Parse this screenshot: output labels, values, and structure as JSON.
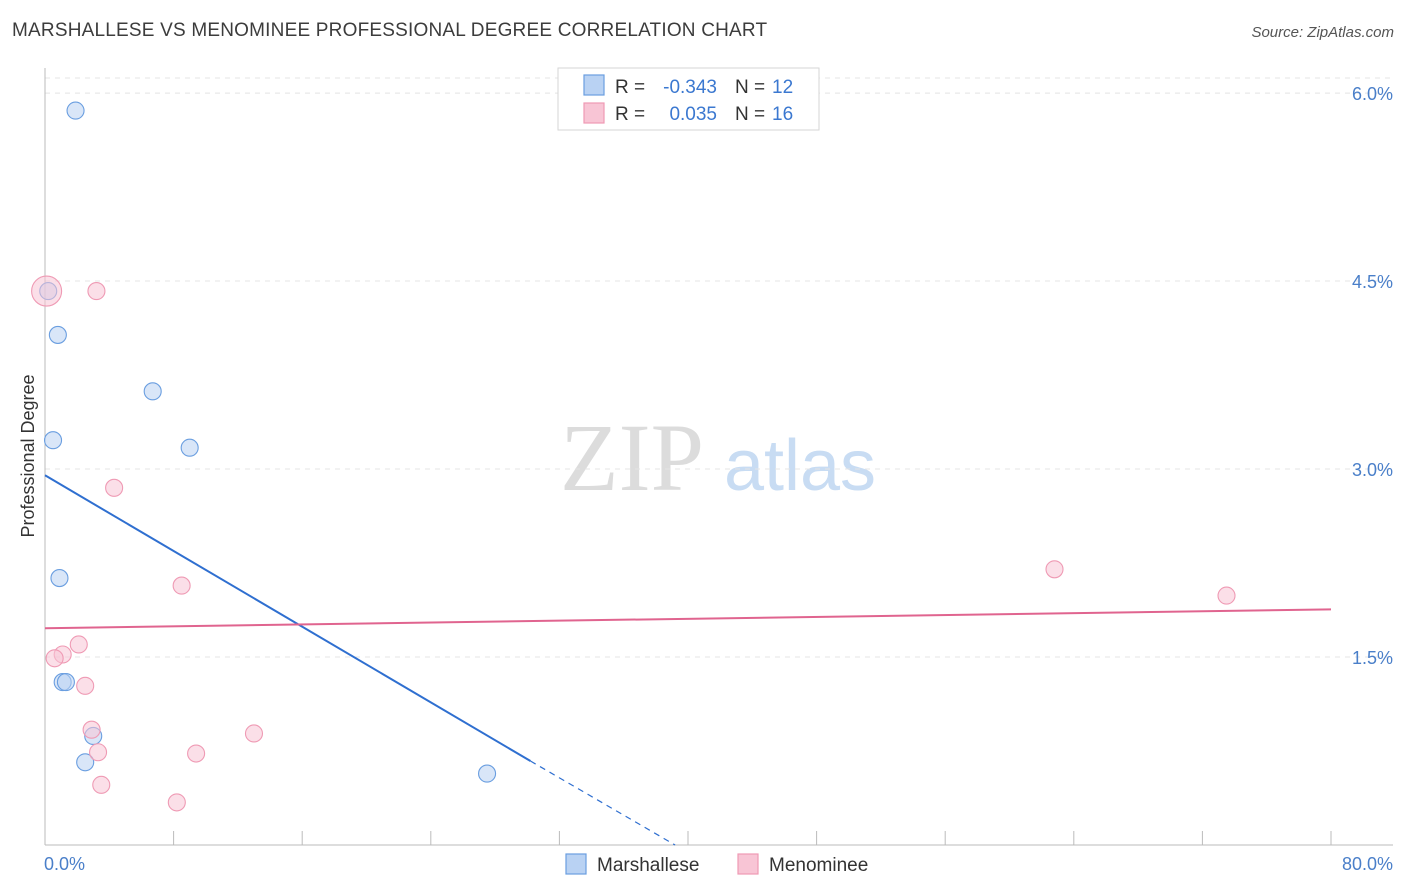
{
  "title": "MARSHALLESE VS MENOMINEE PROFESSIONAL DEGREE CORRELATION CHART",
  "source": "Source: ZipAtlas.com",
  "watermark": {
    "zip": "ZIP",
    "atlas": "atlas"
  },
  "legend_top": [
    {
      "r_label": "R =",
      "r_value": "-0.343",
      "n_label": "N =",
      "n_value": "12"
    },
    {
      "r_label": "R =",
      "r_value": "0.035",
      "n_label": "N =",
      "n_value": "16"
    }
  ],
  "legend_bottom": [
    "Marshallese",
    "Menominee"
  ],
  "chart_data": {
    "type": "scatter",
    "title": "MARSHALLESE VS MENOMINEE PROFESSIONAL DEGREE CORRELATION CHART",
    "xlabel": "",
    "ylabel": "Professional Degree",
    "xlim": [
      0,
      80
    ],
    "ylim": [
      0,
      6.2
    ],
    "x_tick_labels": [
      "0.0%",
      "80.0%"
    ],
    "y_ticks": [
      1.5,
      3.0,
      4.5,
      6.0
    ],
    "y_tick_labels": [
      "1.5%",
      "3.0%",
      "4.5%",
      "6.0%"
    ],
    "grid": true,
    "series": [
      {
        "name": "Marshallese",
        "color": "#6a9ee0",
        "fill": "#b9d2f3",
        "line_color": "#2f6fd0",
        "r": -0.343,
        "n": 12,
        "points": [
          {
            "x": 1.9,
            "y": 5.86
          },
          {
            "x": 0.2,
            "y": 4.42
          },
          {
            "x": 0.8,
            "y": 4.07
          },
          {
            "x": 6.7,
            "y": 3.62
          },
          {
            "x": 0.5,
            "y": 3.23
          },
          {
            "x": 9.0,
            "y": 3.17
          },
          {
            "x": 0.9,
            "y": 2.13
          },
          {
            "x": 1.1,
            "y": 1.3
          },
          {
            "x": 1.3,
            "y": 1.3
          },
          {
            "x": 3.0,
            "y": 0.87
          },
          {
            "x": 2.5,
            "y": 0.66
          },
          {
            "x": 27.5,
            "y": 0.57
          }
        ],
        "trend": {
          "x0": 0,
          "y0": 2.95,
          "x1": 30.2,
          "y1": 0.67,
          "dash_x1": 39.2,
          "dash_y1": 0.0
        }
      },
      {
        "name": "Menominee",
        "color": "#ef9ab4",
        "fill": "#f8c5d5",
        "line_color": "#e0648f",
        "r": 0.035,
        "n": 16,
        "points": [
          {
            "x": 0.1,
            "y": 4.42,
            "size": "large"
          },
          {
            "x": 3.2,
            "y": 4.42
          },
          {
            "x": 4.3,
            "y": 2.85
          },
          {
            "x": 8.5,
            "y": 2.07
          },
          {
            "x": 62.8,
            "y": 2.2
          },
          {
            "x": 73.5,
            "y": 1.99
          },
          {
            "x": 2.1,
            "y": 1.6
          },
          {
            "x": 1.1,
            "y": 1.52
          },
          {
            "x": 0.6,
            "y": 1.49
          },
          {
            "x": 2.5,
            "y": 1.27
          },
          {
            "x": 2.9,
            "y": 0.92
          },
          {
            "x": 13.0,
            "y": 0.89
          },
          {
            "x": 3.3,
            "y": 0.74
          },
          {
            "x": 9.4,
            "y": 0.73
          },
          {
            "x": 3.5,
            "y": 0.48
          },
          {
            "x": 8.2,
            "y": 0.34
          }
        ],
        "trend": {
          "x0": 0,
          "y0": 1.73,
          "x1": 80,
          "y1": 1.88
        }
      }
    ]
  }
}
